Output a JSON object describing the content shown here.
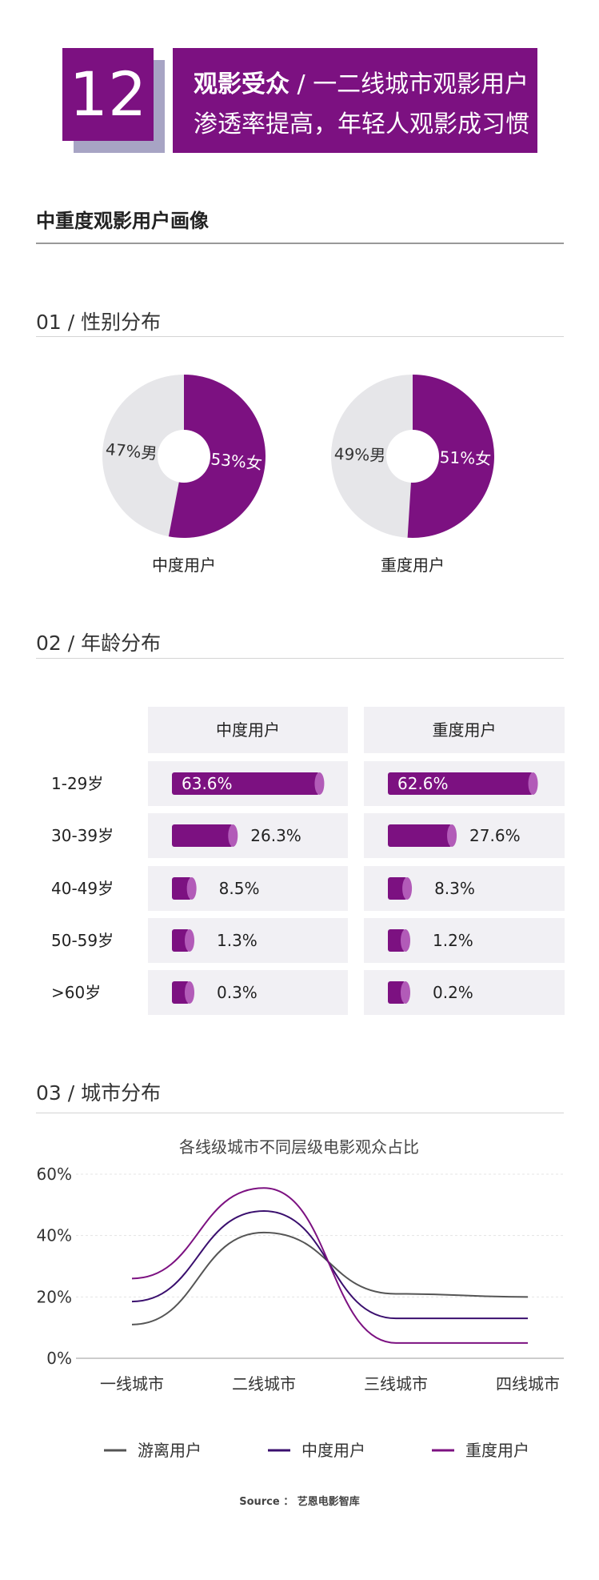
{
  "header": {
    "number": "12",
    "title_bold": "观影受众",
    "title_sep": " / ",
    "title_rest": "一二线城市观影用户",
    "title_line2": "渗透率提高，年轻人观影成习惯"
  },
  "section_main": "中重度观影用户画像",
  "gender": {
    "heading": "01 / 性别分布",
    "donuts": [
      {
        "label": "中度用户",
        "female_pct": 53,
        "male_pct": 47,
        "female_text": "53%女",
        "male_text": "47%男"
      },
      {
        "label": "重度用户",
        "female_pct": 51,
        "male_pct": 49,
        "female_text": "51%女",
        "male_text": "49%男"
      }
    ]
  },
  "age": {
    "heading": "02 / 年龄分布",
    "columns": [
      "中度用户",
      "重度用户"
    ],
    "rows": [
      {
        "label": "1-29岁",
        "values": [
          63.6,
          62.6
        ],
        "texts": [
          "63.6%",
          "62.6%"
        ]
      },
      {
        "label": "30-39岁",
        "values": [
          26.3,
          27.6
        ],
        "texts": [
          "26.3%",
          "27.6%"
        ]
      },
      {
        "label": "40-49岁",
        "values": [
          8.5,
          8.3
        ],
        "texts": [
          "8.5%",
          "8.3%"
        ]
      },
      {
        "label": "50-59岁",
        "values": [
          1.3,
          1.2
        ],
        "texts": [
          "1.3%",
          "1.2%"
        ]
      },
      {
        "label": ">60岁",
        "values": [
          0.3,
          0.2
        ],
        "texts": [
          "0.3%",
          "0.2%"
        ]
      }
    ]
  },
  "city": {
    "heading": "03 / 城市分布",
    "title": "各线级城市不同层级电影观众占比"
  },
  "colors": {
    "purple": "#7c1181",
    "purple_light": "#b25bb8",
    "navy": "#3a0f6e",
    "grey_line": "#555555",
    "cell_bg": "#f1f0f4",
    "donut_grey": "#e6e6e9"
  },
  "chart_data": {
    "type": "line",
    "title": "各线级城市不同层级电影观众占比",
    "categories": [
      "一线城市",
      "二线城市",
      "三线城市",
      "四线城市"
    ],
    "y_ticks": [
      "0%",
      "20%",
      "40%",
      "60%"
    ],
    "ylim": [
      0,
      60
    ],
    "series": [
      {
        "name": "游离用户",
        "values": [
          11,
          41,
          21,
          20
        ],
        "color": "#555555"
      },
      {
        "name": "中度用户",
        "values": [
          18.5,
          48,
          13,
          13
        ],
        "color": "#3a0f6e"
      },
      {
        "name": "重度用户",
        "values": [
          26,
          55.5,
          5,
          5
        ],
        "color": "#7c1181"
      }
    ],
    "legend": "bottom"
  },
  "source": "Source ： 艺恩电影智库"
}
